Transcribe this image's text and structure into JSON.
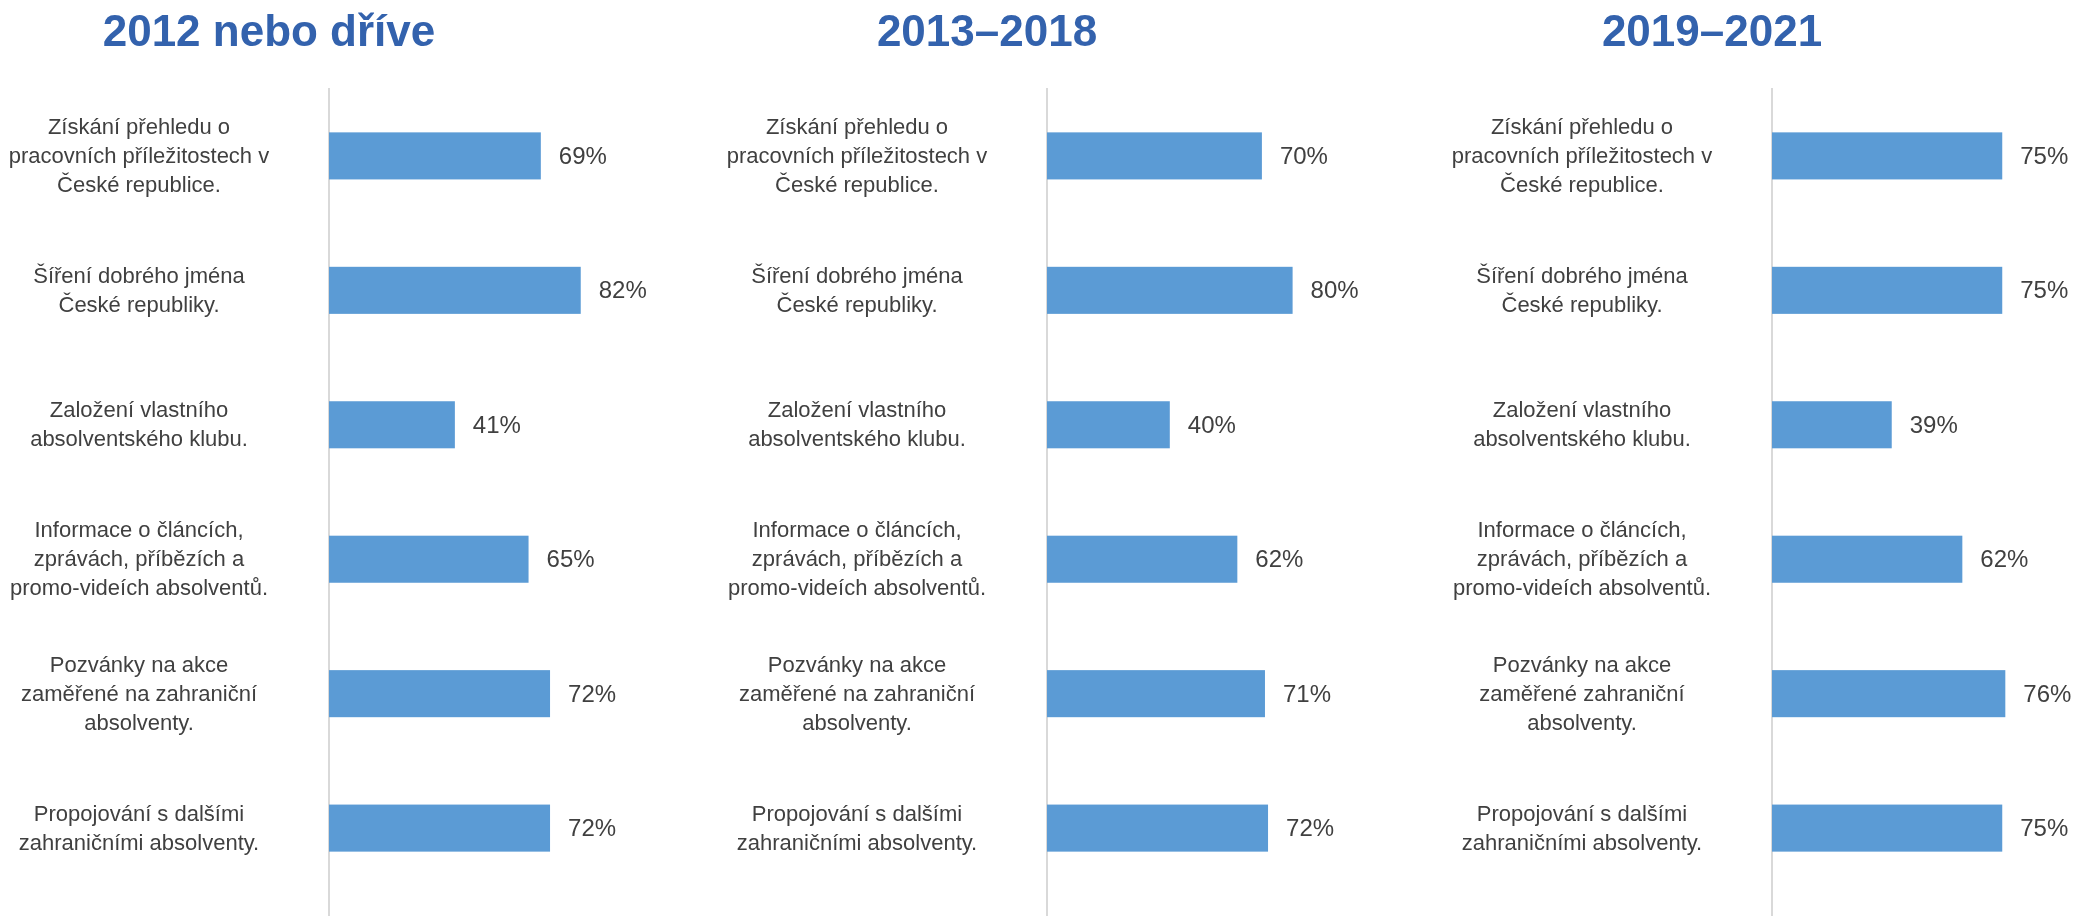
{
  "chart_data": [
    {
      "type": "bar",
      "orientation": "horizontal",
      "title": "2012 nebo dříve",
      "categories": [
        "Získání přehledu o pracovních příležitostech v České republice.",
        "Šíření dobrého jména České republiky.",
        "Založení vlastního absolventského klubu.",
        "Informace o článcích, zprávách, příbězích a promo-videích absolventů.",
        "Pozvánky na akce zaměřené na zahraniční absolventy.",
        "Propojování s dalšími zahraničními absolventy."
      ],
      "values": [
        69,
        82,
        41,
        65,
        72,
        72
      ],
      "value_labels": [
        "69%",
        "82%",
        "41%",
        "65%",
        "72%",
        "72%"
      ],
      "color": "#5b9bd5",
      "tick_labels": "y"
    },
    {
      "type": "bar",
      "orientation": "horizontal",
      "title": "2013–2018",
      "categories": [
        "Získání přehledu o pracovních příležitostech v České republice.",
        "Šíření dobrého jména České republiky.",
        "Založení vlastního absolventského klubu.",
        "Informace o článcích, zprávách, příbězích a promo-videích absolventů.",
        "Pozvánky na akce zaměřené na zahraniční absolventy.",
        "Propojování s dalšími zahraničními absolventy."
      ],
      "values": [
        70,
        80,
        40,
        62,
        71,
        72
      ],
      "value_labels": [
        "70%",
        "80%",
        "40%",
        "62%",
        "71%",
        "72%"
      ],
      "color": "#5b9bd5",
      "tick_labels": "y"
    },
    {
      "type": "bar",
      "orientation": "horizontal",
      "title": "2019–2021",
      "categories": [
        "Získání přehledu o pracovních příležitostech v České republice.",
        "Šíření dobrého jména České republiky.",
        "Založení vlastního absolventského klubu.",
        "Informace o článcích, zprávách, příbězích a promo-videích absolventů.",
        "Pozvánky na akce zaměřené zahraniční absolventy.",
        "Propojování s dalšími zahraničními absolventy."
      ],
      "values": [
        75,
        75,
        39,
        62,
        76,
        75
      ],
      "value_labels": [
        "75%",
        "75%",
        "39%",
        "62%",
        "76%",
        "75%"
      ],
      "color": "#5b9bd5",
      "tick_labels": "y"
    }
  ]
}
